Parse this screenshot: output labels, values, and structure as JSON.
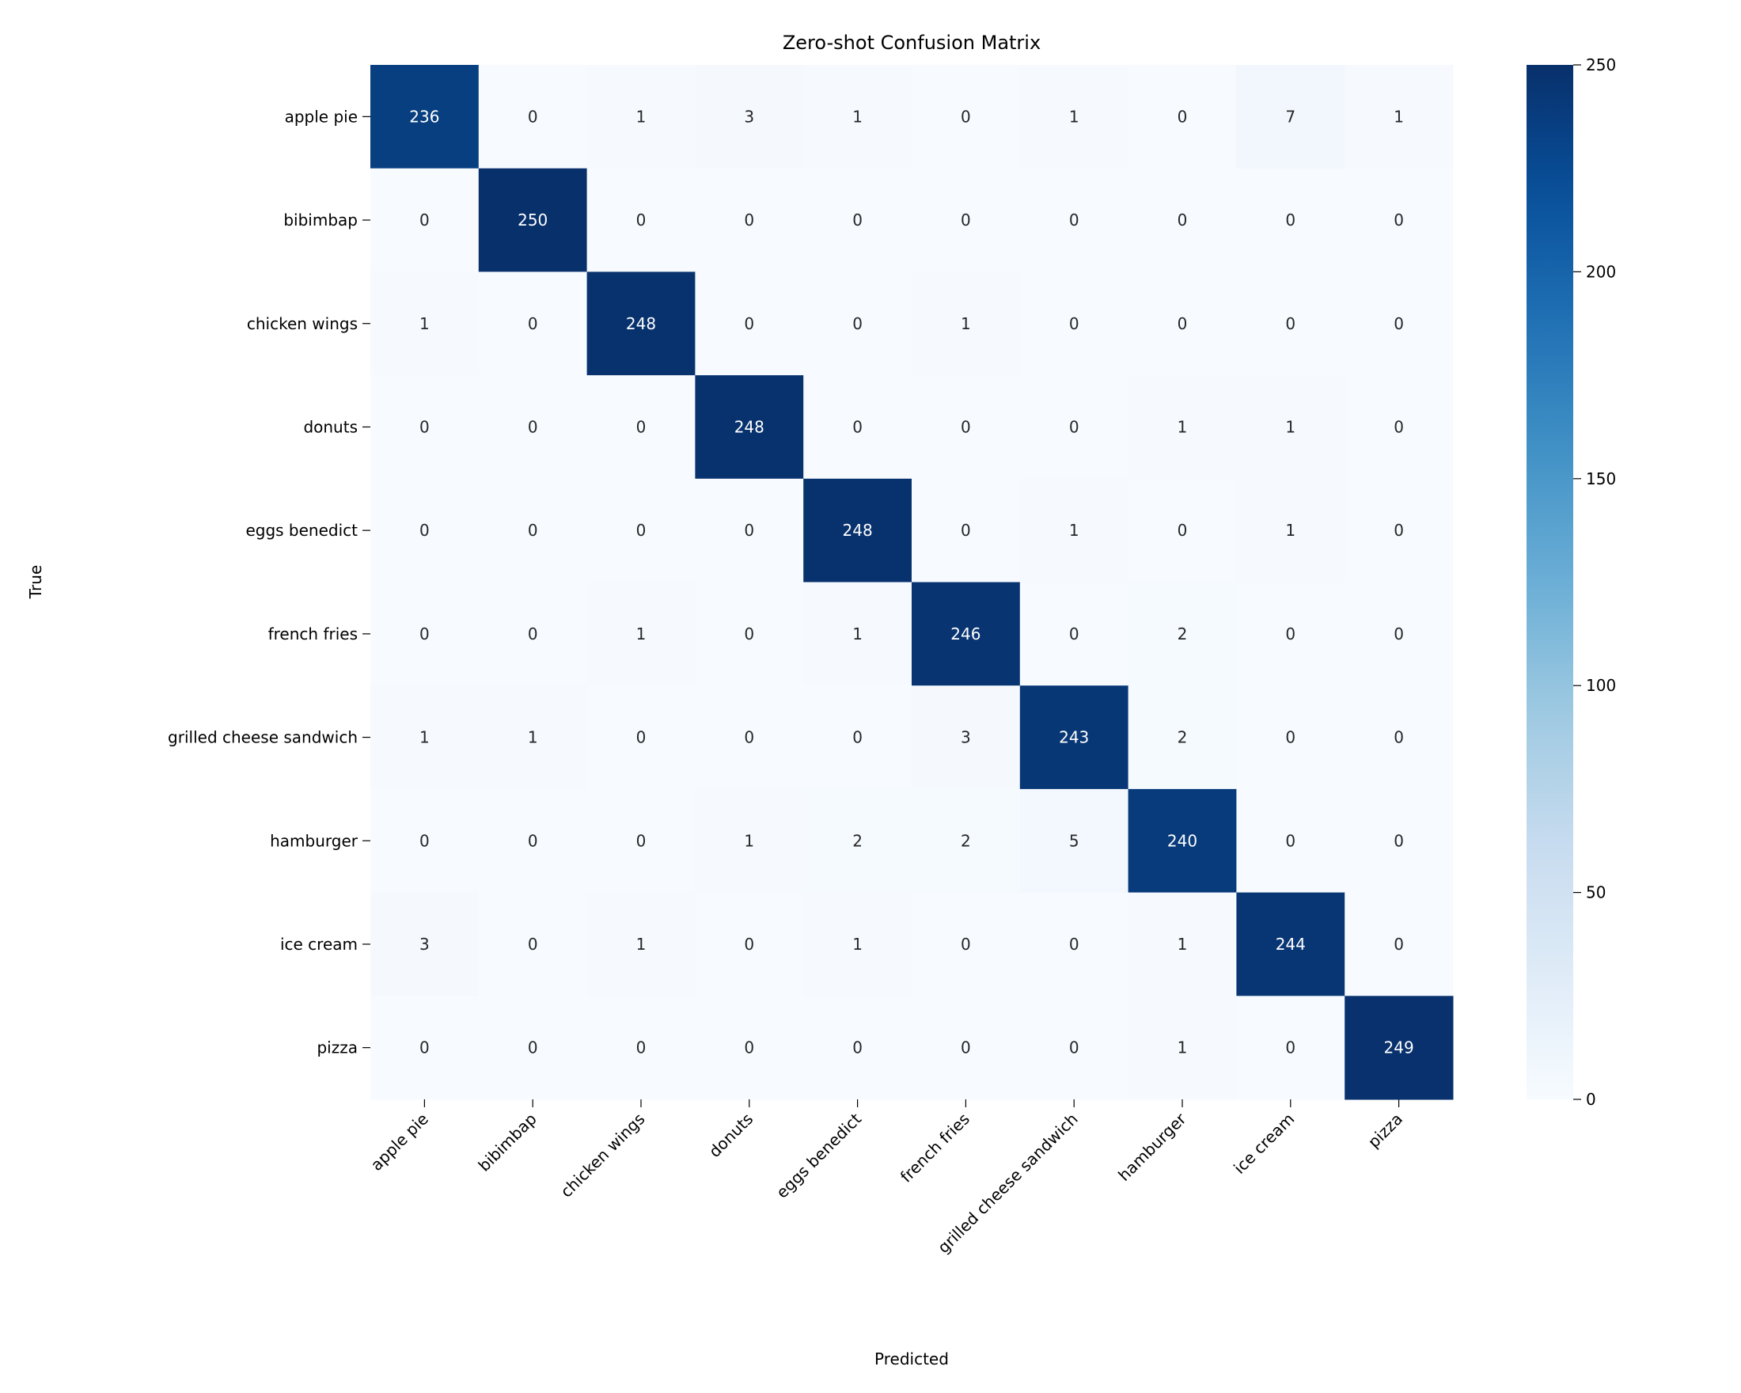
{
  "chart_data": {
    "type": "heatmap",
    "title": "Zero-shot Confusion Matrix",
    "xlabel": "Predicted",
    "ylabel": "True",
    "x_categories": [
      "apple pie",
      "bibimbap",
      "chicken wings",
      "donuts",
      "eggs benedict",
      "french fries",
      "grilled cheese sandwich",
      "hamburger",
      "ice cream",
      "pizza"
    ],
    "y_categories": [
      "apple pie",
      "bibimbap",
      "chicken wings",
      "donuts",
      "eggs benedict",
      "french fries",
      "grilled cheese sandwich",
      "hamburger",
      "ice cream",
      "pizza"
    ],
    "values": [
      [
        236,
        0,
        1,
        3,
        1,
        0,
        1,
        0,
        7,
        1
      ],
      [
        0,
        250,
        0,
        0,
        0,
        0,
        0,
        0,
        0,
        0
      ],
      [
        1,
        0,
        248,
        0,
        0,
        1,
        0,
        0,
        0,
        0
      ],
      [
        0,
        0,
        0,
        248,
        0,
        0,
        0,
        1,
        1,
        0
      ],
      [
        0,
        0,
        0,
        0,
        248,
        0,
        1,
        0,
        1,
        0
      ],
      [
        0,
        0,
        1,
        0,
        1,
        246,
        0,
        2,
        0,
        0
      ],
      [
        1,
        1,
        0,
        0,
        0,
        3,
        243,
        2,
        0,
        0
      ],
      [
        0,
        0,
        0,
        1,
        2,
        2,
        5,
        240,
        0,
        0
      ],
      [
        3,
        0,
        1,
        0,
        1,
        0,
        0,
        1,
        244,
        0
      ],
      [
        0,
        0,
        0,
        0,
        0,
        0,
        0,
        1,
        0,
        249
      ]
    ],
    "colormap": "Blues",
    "color_range": [
      0,
      250
    ],
    "colorbar_ticks": [
      0,
      50,
      100,
      150,
      200,
      250
    ],
    "annotations": true,
    "grid": false
  }
}
